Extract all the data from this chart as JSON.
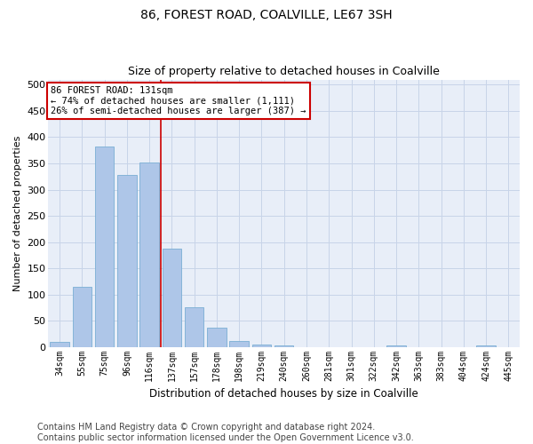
{
  "title": "86, FOREST ROAD, COALVILLE, LE67 3SH",
  "subtitle": "Size of property relative to detached houses in Coalville",
  "xlabel": "Distribution of detached houses by size in Coalville",
  "ylabel": "Number of detached properties",
  "categories": [
    "34sqm",
    "55sqm",
    "75sqm",
    "96sqm",
    "116sqm",
    "137sqm",
    "157sqm",
    "178sqm",
    "198sqm",
    "219sqm",
    "240sqm",
    "260sqm",
    "281sqm",
    "301sqm",
    "322sqm",
    "342sqm",
    "363sqm",
    "383sqm",
    "404sqm",
    "424sqm",
    "445sqm"
  ],
  "values": [
    10,
    115,
    383,
    328,
    352,
    188,
    75,
    37,
    12,
    5,
    2,
    0,
    0,
    0,
    0,
    3,
    0,
    0,
    0,
    2,
    0
  ],
  "bar_color": "#aec6e8",
  "bar_edge_color": "#7aafd4",
  "grid_color": "#c8d4e8",
  "bg_color": "#e8eef8",
  "property_line_x": 4.5,
  "annotation_line1": "86 FOREST ROAD: 131sqm",
  "annotation_line2": "← 74% of detached houses are smaller (1,111)",
  "annotation_line3": "26% of semi-detached houses are larger (387) →",
  "annotation_box_color": "#ffffff",
  "annotation_box_edge": "#cc0000",
  "annotation_text_color": "#000000",
  "property_line_color": "#cc0000",
  "ylim": [
    0,
    510
  ],
  "yticks": [
    0,
    50,
    100,
    150,
    200,
    250,
    300,
    350,
    400,
    450,
    500
  ],
  "footer": "Contains HM Land Registry data © Crown copyright and database right 2024.\nContains public sector information licensed under the Open Government Licence v3.0.",
  "title_fontsize": 10,
  "subtitle_fontsize": 9,
  "annotation_fontsize": 7.5,
  "footer_fontsize": 7
}
